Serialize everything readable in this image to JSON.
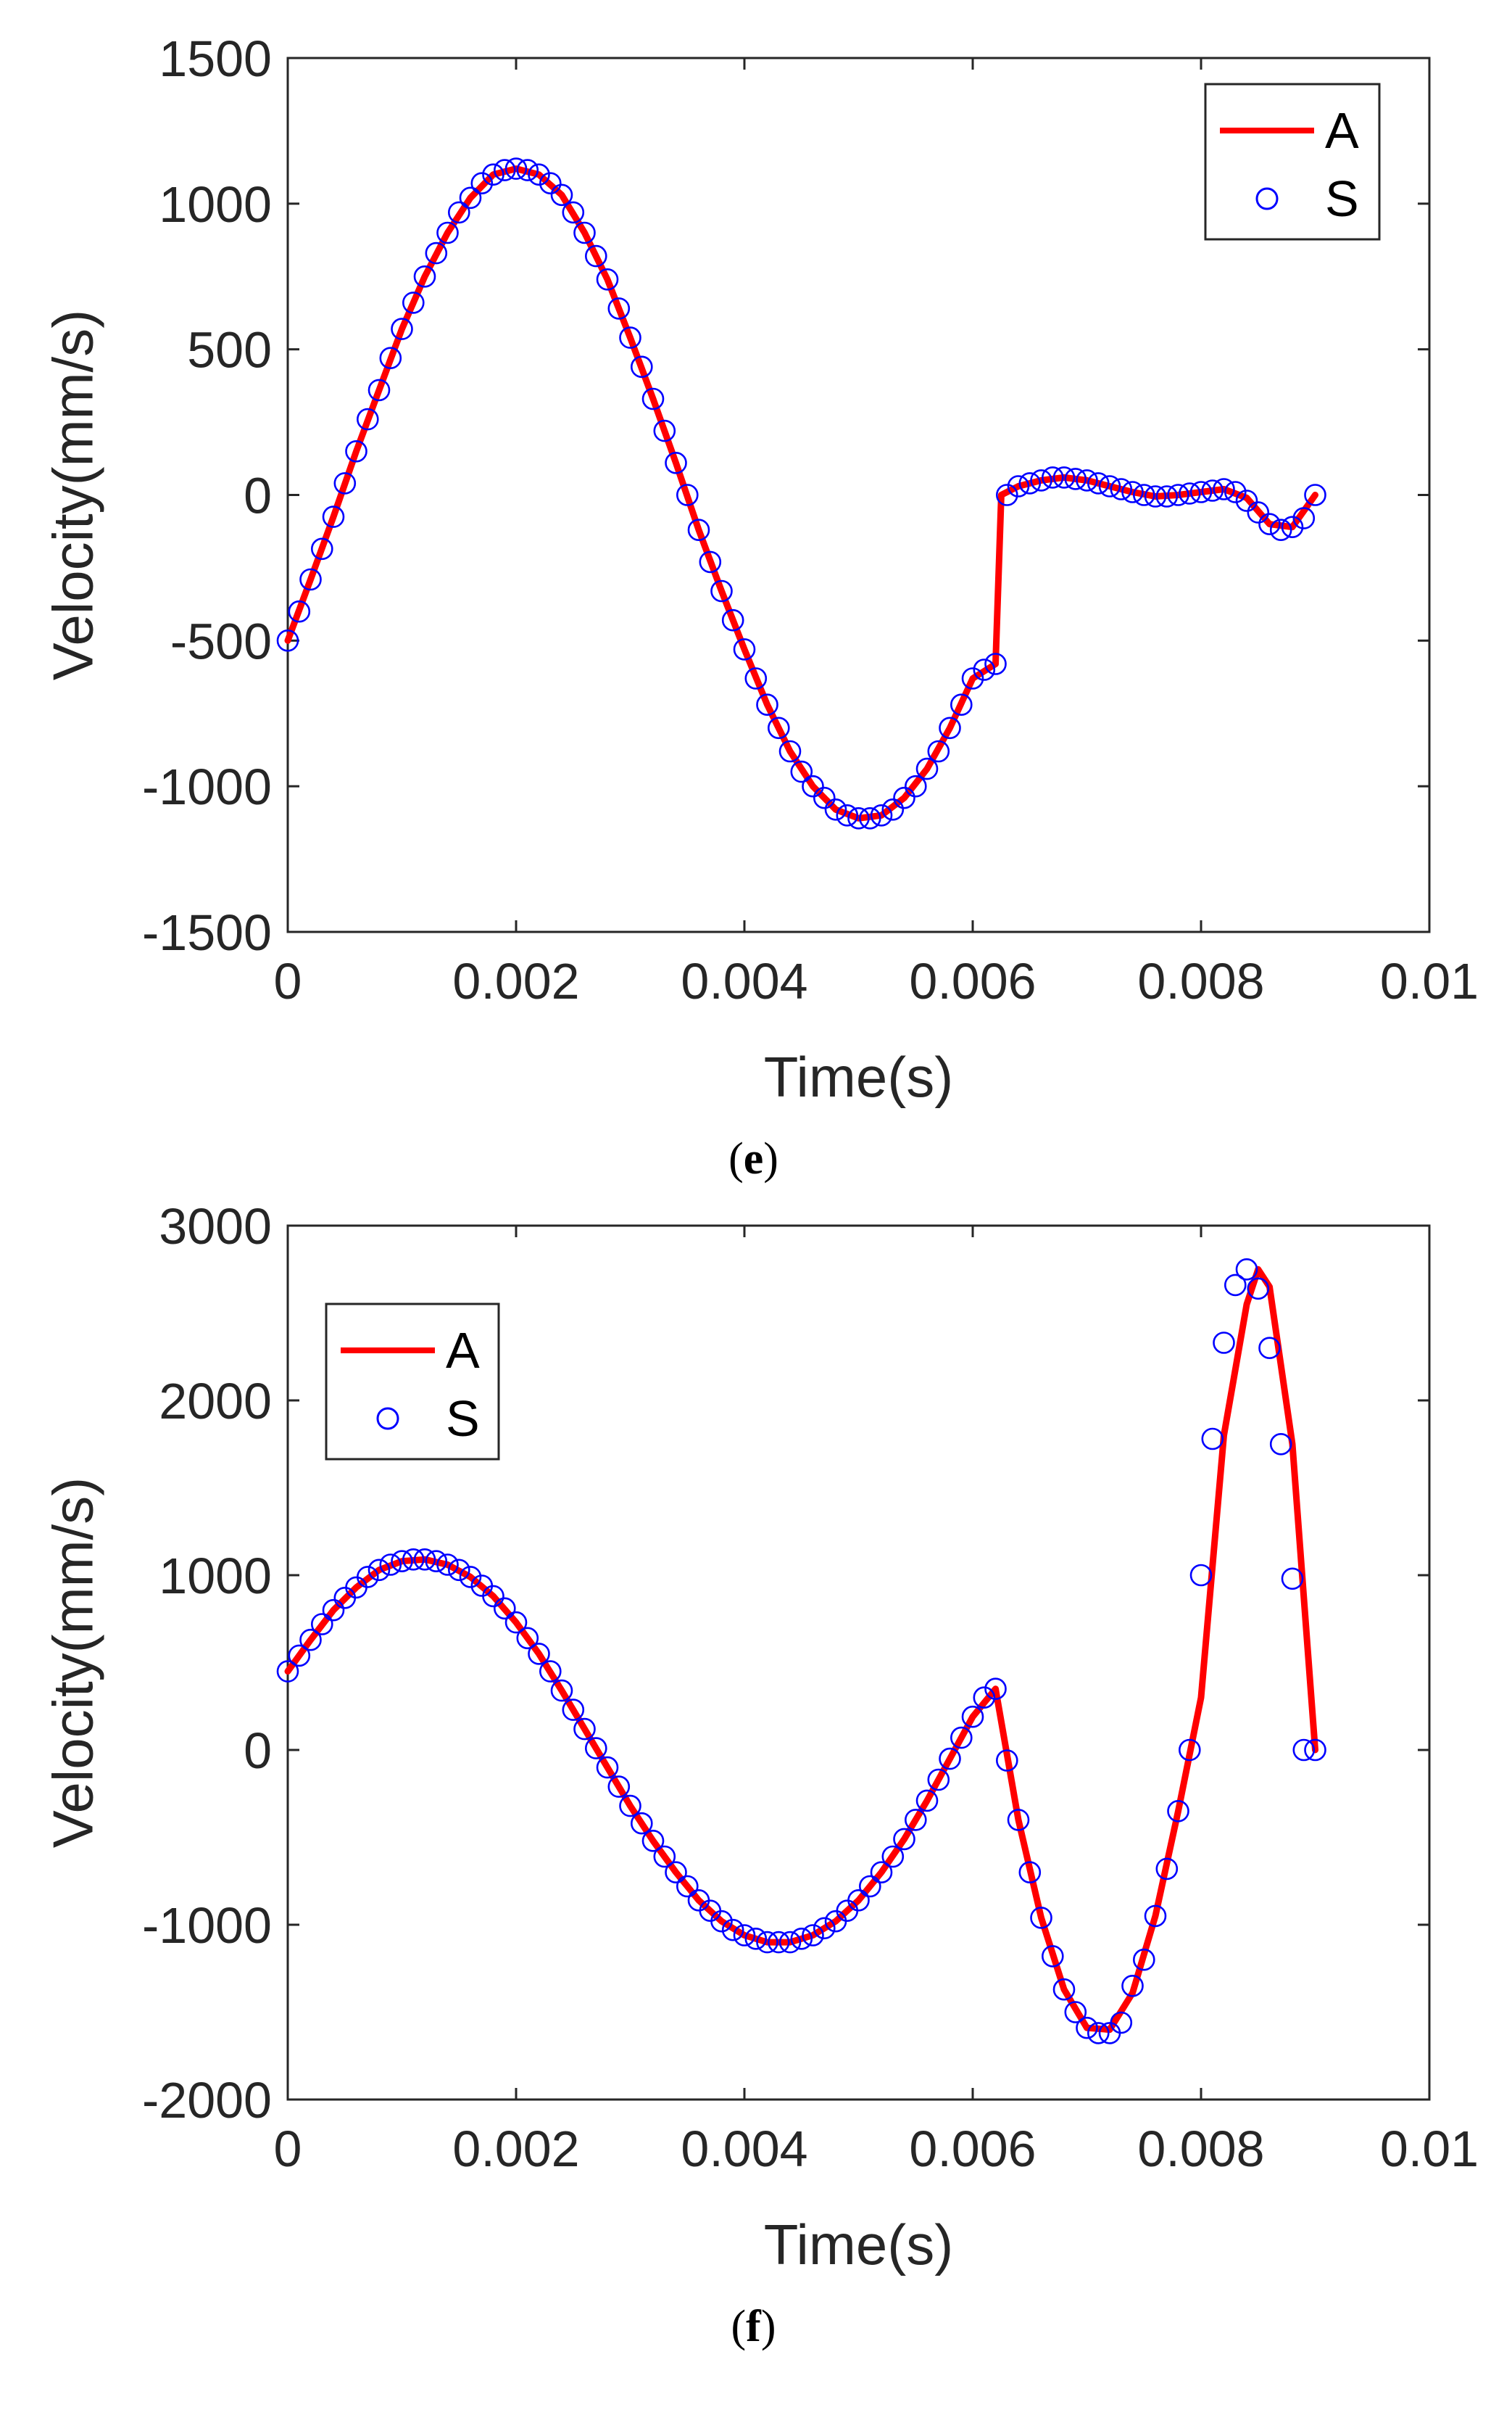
{
  "chart_data": [
    {
      "type": "line",
      "panel_label": "e",
      "xlabel": "Time(s)",
      "ylabel": "Velocity(mm/s)",
      "xlim": [
        0,
        0.01
      ],
      "ylim": [
        -1500,
        1500
      ],
      "xticks": [
        0,
        0.002,
        0.004,
        0.006,
        0.008,
        0.01
      ],
      "xtick_labels": [
        "0",
        "0.002",
        "0.004",
        "0.006",
        "0.008",
        "0.01"
      ],
      "yticks": [
        -1500,
        -1000,
        -500,
        0,
        500,
        1000,
        1500
      ],
      "ytick_labels": [
        "-1500",
        "-1000",
        "-500",
        "0",
        "500",
        "1000",
        "1500"
      ],
      "legend_position": "top-right",
      "colors": {
        "A": "#ff0000",
        "S": "#0000ff"
      },
      "series": [
        {
          "name": "A",
          "style": "line",
          "x": [
            0,
            0.0002,
            0.0004,
            0.0006,
            0.0008,
            0.001,
            0.0012,
            0.0014,
            0.0016,
            0.0018,
            0.002,
            0.0022,
            0.0024,
            0.0026,
            0.0028,
            0.003,
            0.0032,
            0.0034,
            0.0036,
            0.0038,
            0.004,
            0.0042,
            0.0044,
            0.0046,
            0.0048,
            0.005,
            0.0052,
            0.0054,
            0.0056,
            0.0058,
            0.006,
            0.0062,
            0.00625,
            0.0064,
            0.0066,
            0.0068,
            0.007,
            0.0072,
            0.0074,
            0.0076,
            0.0078,
            0.008,
            0.0082,
            0.0084,
            0.0086,
            0.0088,
            0.009
          ],
          "y": [
            -500,
            -290,
            -75,
            150,
            360,
            570,
            750,
            900,
            1020,
            1100,
            1120,
            1100,
            1030,
            900,
            740,
            540,
            330,
            110,
            -120,
            -330,
            -530,
            -720,
            -880,
            -1000,
            -1080,
            -1110,
            -1100,
            -1040,
            -940,
            -800,
            -630,
            -580,
            0,
            30,
            50,
            60,
            50,
            30,
            10,
            -5,
            0,
            10,
            20,
            -10,
            -100,
            -110,
            0
          ]
        },
        {
          "name": "S",
          "style": "markers",
          "x": [
            0,
            0.0001,
            0.0002,
            0.0003,
            0.0004,
            0.0005,
            0.0006,
            0.0007,
            0.0008,
            0.0009,
            0.001,
            0.0011,
            0.0012,
            0.0013,
            0.0014,
            0.0015,
            0.0016,
            0.0017,
            0.0018,
            0.0019,
            0.002,
            0.0021,
            0.0022,
            0.0023,
            0.0024,
            0.0025,
            0.0026,
            0.0027,
            0.0028,
            0.0029,
            0.003,
            0.0031,
            0.0032,
            0.0033,
            0.0034,
            0.0035,
            0.0036,
            0.0037,
            0.0038,
            0.0039,
            0.004,
            0.0041,
            0.0042,
            0.0043,
            0.0044,
            0.0045,
            0.0046,
            0.0047,
            0.0048,
            0.0049,
            0.005,
            0.0051,
            0.0052,
            0.0053,
            0.0054,
            0.0055,
            0.0056,
            0.0057,
            0.0058,
            0.0059,
            0.006,
            0.0061,
            0.0062,
            0.0063,
            0.0064,
            0.0065,
            0.0066,
            0.0067,
            0.0068,
            0.0069,
            0.007,
            0.0071,
            0.0072,
            0.0073,
            0.0074,
            0.0075,
            0.0076,
            0.0077,
            0.0078,
            0.0079,
            0.008,
            0.0081,
            0.0082,
            0.0083,
            0.0084,
            0.0085,
            0.0086,
            0.0087,
            0.0088,
            0.0089,
            0.009
          ],
          "y": [
            -500,
            -400,
            -290,
            -185,
            -75,
            40,
            150,
            260,
            360,
            470,
            570,
            660,
            750,
            830,
            900,
            970,
            1020,
            1070,
            1100,
            1115,
            1120,
            1115,
            1100,
            1070,
            1030,
            970,
            900,
            820,
            740,
            640,
            540,
            440,
            330,
            220,
            110,
            0,
            -120,
            -230,
            -330,
            -430,
            -530,
            -630,
            -720,
            -800,
            -880,
            -950,
            -1000,
            -1040,
            -1080,
            -1100,
            -1110,
            -1110,
            -1100,
            -1080,
            -1040,
            -1000,
            -940,
            -880,
            -800,
            -720,
            -630,
            -600,
            -580,
            0,
            30,
            40,
            50,
            60,
            60,
            55,
            50,
            40,
            30,
            20,
            10,
            0,
            -5,
            -5,
            0,
            5,
            10,
            15,
            20,
            10,
            -20,
            -60,
            -100,
            -120,
            -110,
            -80,
            0
          ]
        }
      ]
    },
    {
      "type": "line",
      "panel_label": "f",
      "xlabel": "Time(s)",
      "ylabel": "Velocity(mm/s)",
      "xlim": [
        0,
        0.01
      ],
      "ylim": [
        -2000,
        3000
      ],
      "xticks": [
        0,
        0.002,
        0.004,
        0.006,
        0.008,
        0.01
      ],
      "xtick_labels": [
        "0",
        "0.002",
        "0.004",
        "0.006",
        "0.008",
        "0.01"
      ],
      "yticks": [
        -2000,
        -1000,
        0,
        1000,
        2000,
        3000
      ],
      "ytick_labels": [
        "-2000",
        "-1000",
        "0",
        "1000",
        "2000",
        "3000"
      ],
      "legend_position": "top-left",
      "colors": {
        "A": "#ff0000",
        "S": "#0000ff"
      },
      "series": [
        {
          "name": "A",
          "style": "line",
          "x": [
            0,
            0.0002,
            0.0004,
            0.0006,
            0.0008,
            0.001,
            0.0012,
            0.0014,
            0.0016,
            0.0018,
            0.002,
            0.0022,
            0.0024,
            0.0026,
            0.0028,
            0.003,
            0.0032,
            0.0034,
            0.0036,
            0.0038,
            0.004,
            0.0042,
            0.0044,
            0.0046,
            0.0048,
            0.005,
            0.0052,
            0.0054,
            0.0056,
            0.0058,
            0.006,
            0.0062,
            0.0064,
            0.0066,
            0.0068,
            0.007,
            0.0072,
            0.0074,
            0.0076,
            0.0078,
            0.008,
            0.0082,
            0.0084,
            0.0085,
            0.0086,
            0.0088,
            0.009
          ],
          "y": [
            450,
            630,
            800,
            930,
            1030,
            1080,
            1090,
            1060,
            990,
            880,
            730,
            550,
            340,
            120,
            -100,
            -320,
            -520,
            -700,
            -860,
            -980,
            -1060,
            -1100,
            -1100,
            -1060,
            -980,
            -860,
            -700,
            -510,
            -290,
            -50,
            190,
            350,
            -400,
            -960,
            -1370,
            -1590,
            -1600,
            -1390,
            -950,
            -350,
            300,
            1800,
            2550,
            2750,
            2650,
            1750,
            0
          ]
        },
        {
          "name": "S",
          "style": "markers",
          "x": [
            0,
            0.0001,
            0.0002,
            0.0003,
            0.0004,
            0.0005,
            0.0006,
            0.0007,
            0.0008,
            0.0009,
            0.001,
            0.0011,
            0.0012,
            0.0013,
            0.0014,
            0.0015,
            0.0016,
            0.0017,
            0.0018,
            0.0019,
            0.002,
            0.0021,
            0.0022,
            0.0023,
            0.0024,
            0.0025,
            0.0026,
            0.0027,
            0.0028,
            0.0029,
            0.003,
            0.0031,
            0.0032,
            0.0033,
            0.0034,
            0.0035,
            0.0036,
            0.0037,
            0.0038,
            0.0039,
            0.004,
            0.0041,
            0.0042,
            0.0043,
            0.0044,
            0.0045,
            0.0046,
            0.0047,
            0.0048,
            0.0049,
            0.005,
            0.0051,
            0.0052,
            0.0053,
            0.0054,
            0.0055,
            0.0056,
            0.0057,
            0.0058,
            0.0059,
            0.006,
            0.0061,
            0.0062,
            0.0063,
            0.0064,
            0.0065,
            0.0066,
            0.0067,
            0.0068,
            0.0069,
            0.007,
            0.0071,
            0.0072,
            0.0073,
            0.0074,
            0.0075,
            0.0076,
            0.0077,
            0.0078,
            0.0079,
            0.008,
            0.0081,
            0.0082,
            0.0083,
            0.0084,
            0.0085,
            0.0086,
            0.0087,
            0.0088,
            0.0089,
            0.009
          ],
          "y": [
            450,
            540,
            630,
            720,
            800,
            870,
            930,
            990,
            1030,
            1060,
            1080,
            1090,
            1090,
            1080,
            1060,
            1030,
            990,
            940,
            880,
            810,
            730,
            640,
            550,
            450,
            340,
            230,
            120,
            10,
            -100,
            -210,
            -320,
            -420,
            -520,
            -610,
            -700,
            -780,
            -860,
            -920,
            -980,
            -1030,
            -1060,
            -1080,
            -1100,
            -1100,
            -1100,
            -1080,
            -1060,
            -1020,
            -980,
            -920,
            -860,
            -780,
            -700,
            -610,
            -510,
            -400,
            -290,
            -170,
            -50,
            70,
            190,
            300,
            350,
            -60,
            -400,
            -700,
            -960,
            -1180,
            -1370,
            -1500,
            -1590,
            -1620,
            -1620,
            -1560,
            -1350,
            -1200,
            -950,
            -680,
            -350,
            0,
            1000,
            1780,
            2330,
            2660,
            2750,
            2640,
            2300,
            1750,
            980,
            0,
            0
          ]
        }
      ]
    }
  ]
}
